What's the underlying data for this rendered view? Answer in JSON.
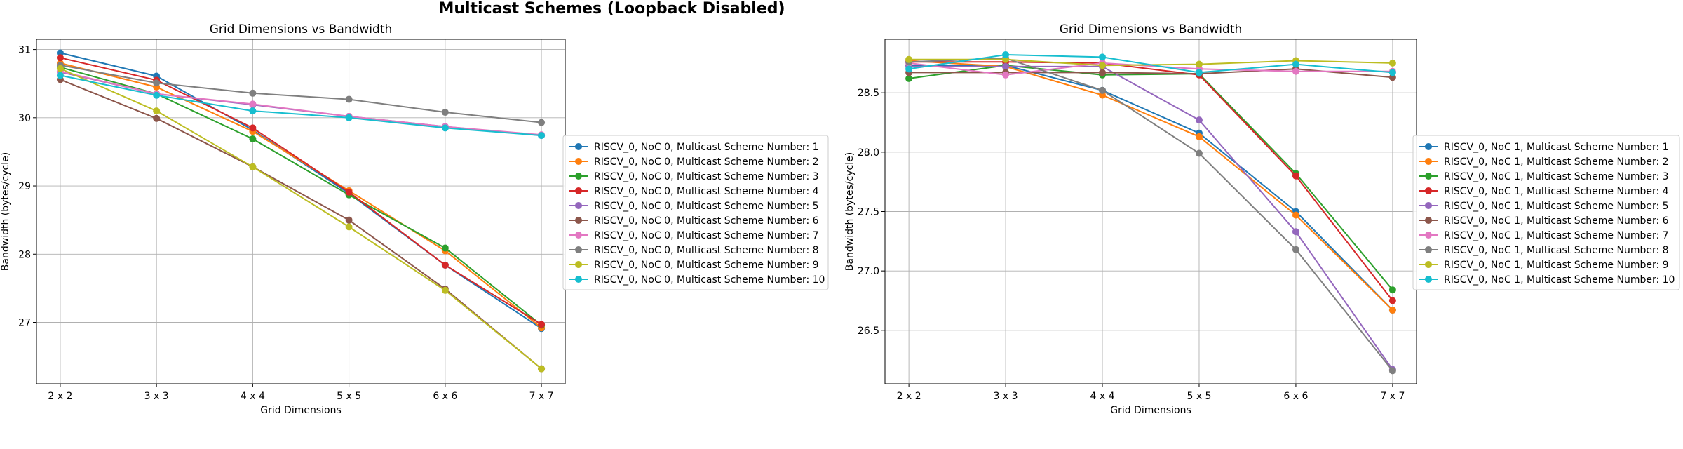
{
  "figure": {
    "title": "Multicast Schemes (Loopback Disabled)"
  },
  "colors": [
    "#1f77b4",
    "#ff7f0e",
    "#2ca02c",
    "#d62728",
    "#9467bd",
    "#8c564b",
    "#e377c2",
    "#7f7f7f",
    "#bcbd22",
    "#17becf"
  ],
  "chart_data": [
    {
      "type": "line",
      "title": "Grid Dimensions vs Bandwidth",
      "xlabel": "Grid Dimensions",
      "ylabel": "Bandwidth (bytes/cycle)",
      "categories": [
        "2 x 2",
        "3 x 3",
        "4 x 4",
        "5 x 5",
        "6 x 6",
        "7 x 7"
      ],
      "ylim": [
        26.1,
        31.15
      ],
      "yticks": [
        27,
        28,
        29,
        30,
        31
      ],
      "ytick_labels": [
        "27",
        "28",
        "29",
        "30",
        "31"
      ],
      "grid": true,
      "legend": "outside-right",
      "series": [
        {
          "name": "RISCV_0, NoC 0, Multicast Scheme Number: 1",
          "values": [
            30.95,
            30.61,
            29.82,
            28.89,
            27.84,
            26.91
          ]
        },
        {
          "name": "RISCV_0, NoC 0, Multicast Scheme Number: 2",
          "values": [
            30.8,
            30.45,
            29.8,
            28.93,
            28.05,
            26.92
          ]
        },
        {
          "name": "RISCV_0, NoC 0, Multicast Scheme Number: 3",
          "values": [
            30.74,
            30.35,
            29.69,
            28.87,
            28.09,
            26.96
          ]
        },
        {
          "name": "RISCV_0, NoC 0, Multicast Scheme Number: 4",
          "values": [
            30.88,
            30.55,
            29.85,
            28.91,
            27.84,
            26.97
          ]
        },
        {
          "name": "RISCV_0, NoC 0, Multicast Scheme Number: 5",
          "values": [
            30.67,
            30.35,
            30.19,
            30.02,
            29.87,
            29.74
          ]
        },
        {
          "name": "RISCV_0, NoC 0, Multicast Scheme Number: 6",
          "values": [
            30.56,
            29.99,
            29.28,
            28.5,
            27.49,
            26.32
          ]
        },
        {
          "name": "RISCV_0, NoC 0, Multicast Scheme Number: 7",
          "values": [
            30.68,
            30.35,
            30.2,
            30.02,
            29.87,
            29.75
          ]
        },
        {
          "name": "RISCV_0, NoC 0, Multicast Scheme Number: 8",
          "values": [
            30.77,
            30.51,
            30.36,
            30.27,
            30.08,
            29.93
          ]
        },
        {
          "name": "RISCV_0, NoC 0, Multicast Scheme Number: 9",
          "values": [
            30.72,
            30.1,
            29.28,
            28.4,
            27.47,
            26.32
          ]
        },
        {
          "name": "RISCV_0, NoC 0, Multicast Scheme Number: 10",
          "values": [
            30.62,
            30.33,
            30.1,
            30.0,
            29.85,
            29.74
          ]
        }
      ]
    },
    {
      "type": "line",
      "title": "Grid Dimensions vs Bandwidth",
      "xlabel": "Grid Dimensions",
      "ylabel": "Bandwidth (bytes/cycle)",
      "categories": [
        "2 x 2",
        "3 x 3",
        "4 x 4",
        "5 x 5",
        "6 x 6",
        "7 x 7"
      ],
      "ylim": [
        26.05,
        28.95
      ],
      "yticks": [
        26.5,
        27.0,
        27.5,
        28.0,
        28.5
      ],
      "ytick_labels": [
        "26.5",
        "27.0",
        "27.5",
        "28.0",
        "28.5"
      ],
      "grid": true,
      "legend": "outside-right",
      "series": [
        {
          "name": "RISCV_0, NoC 1, Multicast Scheme Number: 1",
          "values": [
            28.73,
            28.73,
            28.52,
            28.16,
            27.5,
            26.67
          ]
        },
        {
          "name": "RISCV_0, NoC 1, Multicast Scheme Number: 2",
          "values": [
            28.77,
            28.72,
            28.48,
            28.13,
            27.47,
            26.67
          ]
        },
        {
          "name": "RISCV_0, NoC 1, Multicast Scheme Number: 3",
          "values": [
            28.62,
            28.73,
            28.65,
            28.66,
            27.82,
            26.84
          ]
        },
        {
          "name": "RISCV_0, NoC 1, Multicast Scheme Number: 4",
          "values": [
            28.76,
            28.76,
            28.75,
            28.65,
            27.8,
            26.75
          ]
        },
        {
          "name": "RISCV_0, NoC 1, Multicast Scheme Number: 5",
          "values": [
            28.72,
            28.72,
            28.72,
            28.27,
            27.33,
            26.17
          ]
        },
        {
          "name": "RISCV_0, NoC 1, Multicast Scheme Number: 6",
          "values": [
            28.67,
            28.67,
            28.67,
            28.66,
            28.7,
            28.63
          ]
        },
        {
          "name": "RISCV_0, NoC 1, Multicast Scheme Number: 7",
          "values": [
            28.75,
            28.65,
            28.75,
            28.7,
            28.68,
            28.68
          ]
        },
        {
          "name": "RISCV_0, NoC 1, Multicast Scheme Number: 8",
          "values": [
            28.76,
            28.79,
            28.52,
            27.99,
            27.18,
            26.16
          ]
        },
        {
          "name": "RISCV_0, NoC 1, Multicast Scheme Number: 9",
          "values": [
            28.78,
            28.78,
            28.73,
            28.74,
            28.77,
            28.75
          ]
        },
        {
          "name": "RISCV_0, NoC 1, Multicast Scheme Number: 10",
          "values": [
            28.7,
            28.82,
            28.8,
            28.67,
            28.74,
            28.67
          ]
        }
      ]
    }
  ]
}
